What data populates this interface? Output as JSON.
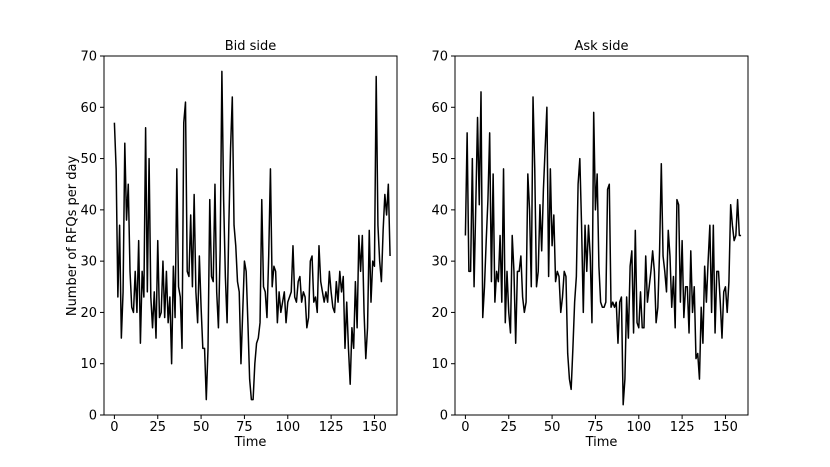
{
  "figure": {
    "ylabel": "Number of RFQs per day"
  },
  "chart_data": [
    {
      "type": "line",
      "title": "Bid side",
      "xlabel": "Time",
      "ylabel": "Number of RFQs per day",
      "xlim": [
        -6,
        163
      ],
      "ylim": [
        0,
        70
      ],
      "xticks": [
        0,
        25,
        50,
        75,
        100,
        125,
        150
      ],
      "yticks": [
        0,
        10,
        20,
        30,
        40,
        50,
        60,
        70
      ],
      "grid": false,
      "color": "#000000",
      "series": [
        {
          "values": [
            57,
            48,
            23,
            37,
            15,
            24,
            53,
            38,
            45,
            28,
            21,
            20,
            28,
            20,
            34,
            14,
            28,
            23,
            56,
            24,
            50,
            23,
            17,
            24,
            15,
            34,
            19,
            20,
            30,
            19,
            28,
            18,
            23,
            10,
            29,
            19,
            48,
            25,
            23,
            13,
            57,
            61,
            28,
            27,
            39,
            25,
            43,
            24,
            18,
            31,
            21,
            13,
            13,
            3,
            13,
            42,
            27,
            26,
            45,
            24,
            17,
            32,
            67,
            42,
            27,
            18,
            37,
            52,
            62,
            37,
            33,
            26,
            24,
            10,
            20,
            30,
            28,
            18,
            7,
            3,
            3,
            10,
            14,
            15,
            18,
            42,
            25,
            24,
            19,
            31,
            48,
            25,
            29,
            28,
            18,
            24,
            20,
            22,
            24,
            18,
            22,
            23,
            24,
            33,
            23,
            22,
            26,
            27,
            22,
            24,
            23,
            17,
            19,
            30,
            31,
            22,
            23,
            20,
            33,
            26,
            24,
            22,
            24,
            22,
            28,
            24,
            21,
            20,
            26,
            22,
            28,
            24,
            27,
            13,
            22,
            13,
            6,
            17,
            13,
            26,
            17,
            35,
            28,
            35,
            20,
            11,
            17,
            36,
            22,
            30,
            29,
            66,
            37,
            30,
            26,
            36,
            43,
            39,
            45,
            31
          ]
        }
      ]
    },
    {
      "type": "line",
      "title": "Ask side",
      "xlabel": "Time",
      "ylabel": "",
      "xlim": [
        -6,
        163
      ],
      "ylim": [
        0,
        70
      ],
      "xticks": [
        0,
        25,
        50,
        75,
        100,
        125,
        150
      ],
      "yticks": [
        0,
        10,
        20,
        30,
        40,
        50,
        60,
        70
      ],
      "grid": false,
      "color": "#000000",
      "series": [
        {
          "values": [
            35,
            55,
            28,
            28,
            50,
            25,
            41,
            58,
            41,
            63,
            19,
            25,
            34,
            42,
            55,
            26,
            47,
            22,
            28,
            26,
            35,
            22,
            48,
            18,
            28,
            20,
            16,
            35,
            28,
            14,
            28,
            28,
            31,
            23,
            20,
            22,
            47,
            40,
            25,
            62,
            48,
            25,
            28,
            41,
            32,
            44,
            52,
            60,
            27,
            48,
            33,
            39,
            26,
            28,
            27,
            20,
            23,
            28,
            27,
            12,
            7,
            5,
            13,
            22,
            27,
            45,
            50,
            37,
            20,
            37,
            28,
            37,
            31,
            18,
            59,
            40,
            47,
            29,
            22,
            21,
            21,
            22,
            44,
            45,
            21,
            22,
            21,
            22,
            14,
            22,
            23,
            2,
            7,
            23,
            15,
            29,
            32,
            16,
            36,
            18,
            17,
            24,
            17,
            17,
            31,
            22,
            25,
            28,
            32,
            28,
            18,
            21,
            32,
            49,
            31,
            28,
            24,
            36,
            31,
            21,
            27,
            17,
            42,
            41,
            22,
            34,
            19,
            25,
            25,
            16,
            32,
            20,
            25,
            11,
            12,
            7,
            21,
            14,
            29,
            22,
            30,
            37,
            20,
            37,
            16,
            28,
            28,
            22,
            15,
            24,
            25,
            20,
            26,
            41,
            37,
            34,
            35,
            42,
            35,
            35
          ]
        }
      ]
    }
  ]
}
